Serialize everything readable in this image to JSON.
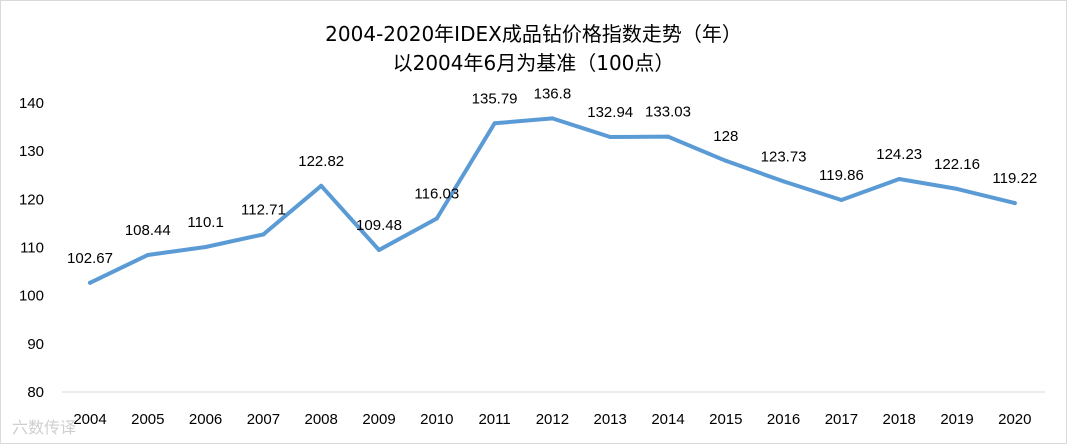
{
  "chart_data": {
    "type": "line",
    "title": "2004-2020年IDEX成品钻价格指数走势（年）",
    "subtitle": "以2004年6月为基准（100点）",
    "xlabel": "",
    "ylabel": "",
    "categories": [
      "2004",
      "2005",
      "2006",
      "2007",
      "2008",
      "2009",
      "2010",
      "2011",
      "2012",
      "2013",
      "2014",
      "2015",
      "2016",
      "2017",
      "2018",
      "2019",
      "2020"
    ],
    "series": [
      {
        "values": [
          102.67,
          108.44,
          110.1,
          112.71,
          122.82,
          109.48,
          116.03,
          135.79,
          136.8,
          132.94,
          133.03,
          128,
          123.73,
          119.86,
          124.23,
          122.16,
          119.22
        ],
        "value_labels": [
          "102.67",
          "108.44",
          "110.1",
          "112.71",
          "122.82",
          "109.48",
          "116.03",
          "135.79",
          "136.8",
          "132.94",
          "133.03",
          "128",
          "123.73",
          "119.86",
          "124.23",
          "122.16",
          "119.22"
        ],
        "color": "#5b9bd5"
      }
    ],
    "ylim": [
      80,
      140
    ],
    "yticks": [
      80,
      90,
      100,
      110,
      120,
      130,
      140
    ],
    "grid": false,
    "legend": "none"
  },
  "watermark": "六数传译"
}
